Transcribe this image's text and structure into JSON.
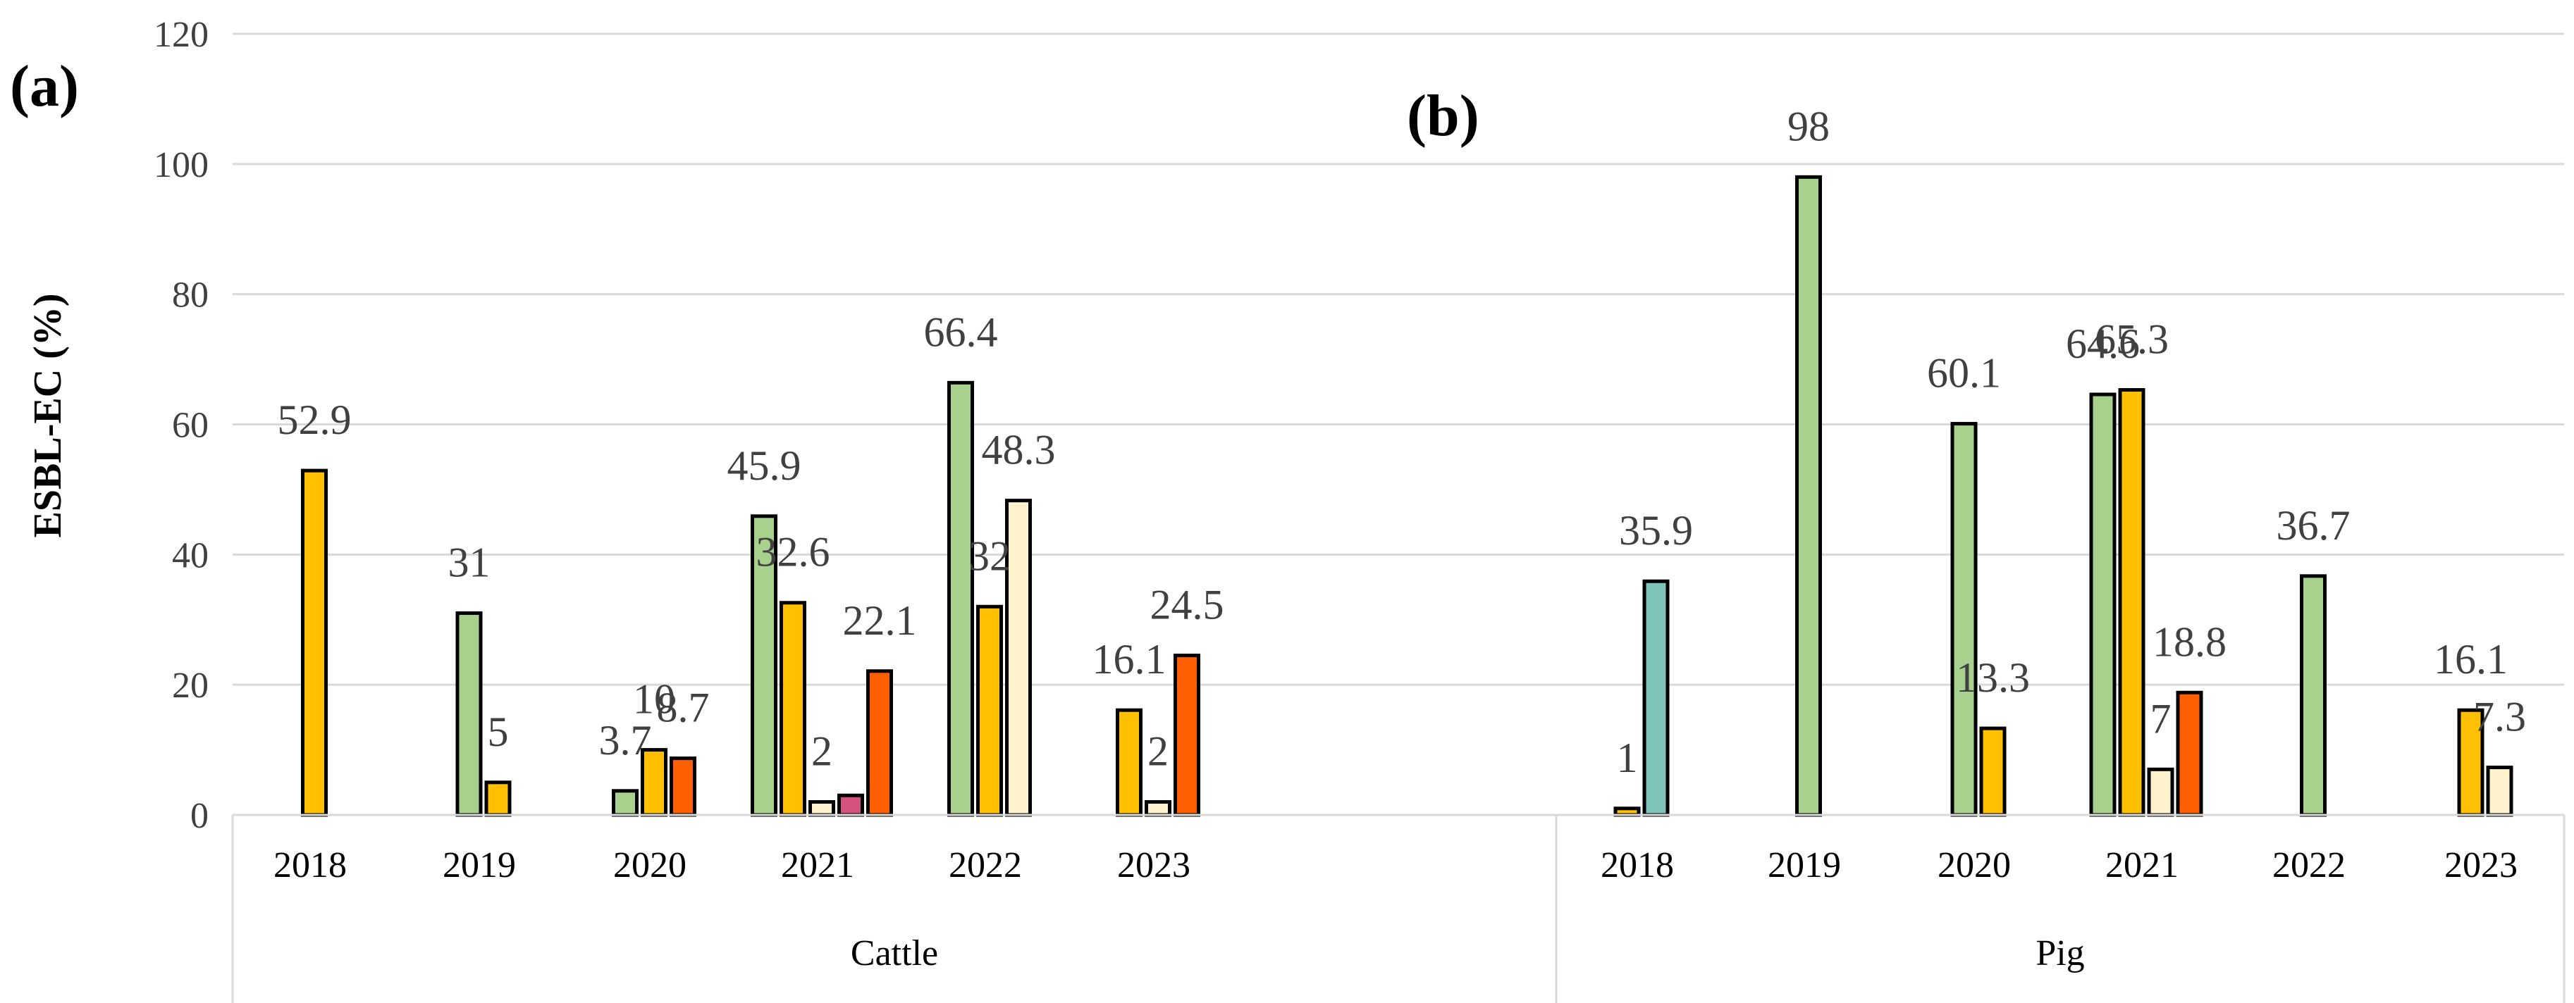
{
  "chart_data": {
    "type": "bar",
    "ylabel": "ESBL-EC (%)",
    "ylim": [
      0,
      120
    ],
    "yticks": [
      "0",
      "20",
      "40",
      "60",
      "80",
      "100",
      "120"
    ],
    "grid": true,
    "panel_labels": [
      "(a)",
      "(b)"
    ],
    "groups": [
      {
        "name": "Cattle",
        "years": [
          {
            "label": "2018",
            "bars": [
              {
                "value": 52.9,
                "label": "52.9",
                "color": "#ffc000"
              }
            ]
          },
          {
            "label": "2019",
            "bars": [
              {
                "value": 31,
                "label": "31",
                "color": "#a9d18e"
              },
              {
                "value": 5,
                "label": "5",
                "color": "#ffc000"
              }
            ]
          },
          {
            "label": "2020",
            "bars": [
              {
                "value": 3.7,
                "label": "3.7",
                "color": "#a9d18e"
              },
              {
                "value": 10,
                "label": "10",
                "color": "#ffc000"
              },
              {
                "value": 8.7,
                "label": "8.7",
                "color": "#ff5f00"
              }
            ]
          },
          {
            "label": "2021",
            "bars": [
              {
                "value": 45.9,
                "label": "45.9",
                "color": "#a9d18e"
              },
              {
                "value": 32.6,
                "label": "32.6",
                "color": "#ffc000"
              },
              {
                "value": 2,
                "label": "2",
                "color": "#fff2cc"
              },
              {
                "value": 3,
                "label": "",
                "color": "#d4537e"
              },
              {
                "value": 22.1,
                "label": "22.1",
                "color": "#ff5f00"
              }
            ]
          },
          {
            "label": "2022",
            "bars": [
              {
                "value": 66.4,
                "label": "66.4",
                "color": "#a9d18e"
              },
              {
                "value": 32,
                "label": "32",
                "color": "#ffc000"
              },
              {
                "value": 48.3,
                "label": "48.3",
                "color": "#fff2cc"
              }
            ]
          },
          {
            "label": "2023",
            "bars": [
              {
                "value": 16.1,
                "label": "16.1",
                "color": "#ffc000"
              },
              {
                "value": 2,
                "label": "2",
                "color": "#fff2cc"
              },
              {
                "value": 24.5,
                "label": "24.5",
                "color": "#ff5f00"
              }
            ]
          }
        ]
      },
      {
        "name": "Pig",
        "years": [
          {
            "label": "2018",
            "bars": [
              {
                "value": 1,
                "label": "1",
                "color": "#ffc000"
              },
              {
                "value": 35.9,
                "label": "35.9",
                "color": "#7fc4b8"
              }
            ]
          },
          {
            "label": "2019",
            "bars": [
              {
                "value": 98,
                "label": "98",
                "color": "#a9d18e"
              }
            ]
          },
          {
            "label": "2020",
            "bars": [
              {
                "value": 60.1,
                "label": "60.1",
                "color": "#a9d18e"
              },
              {
                "value": 13.3,
                "label": "13.3",
                "color": "#ffc000"
              }
            ]
          },
          {
            "label": "2021",
            "bars": [
              {
                "value": 64.6,
                "label": "64.6",
                "color": "#a9d18e"
              },
              {
                "value": 65.3,
                "label": "65.3",
                "color": "#ffc000"
              },
              {
                "value": 7,
                "label": "7",
                "color": "#fff2cc"
              },
              {
                "value": 18.8,
                "label": "18.8",
                "color": "#ff5f00"
              }
            ]
          },
          {
            "label": "2022",
            "bars": [
              {
                "value": 36.7,
                "label": "36.7",
                "color": "#a9d18e"
              }
            ]
          },
          {
            "label": "2023",
            "bars": [
              {
                "value": 16.1,
                "label": "16.1",
                "color": "#ffc000"
              },
              {
                "value": 7.3,
                "label": "7.3",
                "color": "#fff2cc"
              }
            ]
          }
        ]
      }
    ]
  }
}
